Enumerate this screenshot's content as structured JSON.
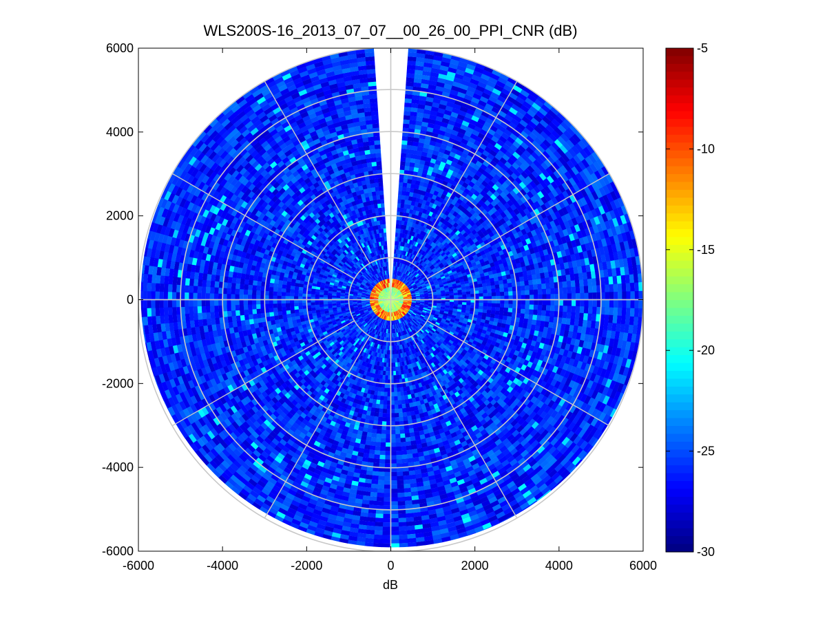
{
  "chart_data": {
    "type": "heatmap",
    "subtype": "polar-ppi",
    "title": "WLS200S-16_2013_07_07__00_26_00_PPI_CNR (dB)",
    "xlabel": "dB",
    "ylabel": "",
    "xlim": [
      -6000,
      6000
    ],
    "ylim": [
      -6000,
      6000
    ],
    "xticks": [
      -6000,
      -4000,
      -2000,
      0,
      2000,
      4000,
      6000
    ],
    "yticks": [
      6000,
      4000,
      2000,
      0,
      -2000,
      -4000,
      -6000
    ],
    "xtick_labels": [
      "-6000",
      "-4000",
      "-2000",
      "0",
      "2000",
      "4000",
      "6000"
    ],
    "ytick_labels": [
      "6000",
      "4000",
      "2000",
      "0",
      "-2000",
      "-4000",
      "-6000"
    ],
    "max_range": 6000,
    "range_rings": [
      1000,
      2000,
      3000,
      4000,
      5000,
      6000
    ],
    "spoke_angles_deg": [
      0,
      30,
      60,
      90,
      120,
      150,
      180,
      210,
      240,
      270,
      300,
      330
    ],
    "missing_sector_deg": [
      -4.5,
      4.5
    ],
    "near_range_high_cnr_radius": 450,
    "typical_cnr_db": -26,
    "colorbar": {
      "min": -30,
      "max": -5,
      "ticks": [
        -5,
        -10,
        -15,
        -20,
        -25,
        -30
      ],
      "tick_labels": [
        "-5",
        "-10",
        "-15",
        "-20",
        "-25",
        "-30"
      ],
      "colormap": "jet"
    },
    "grid_color": "#c8c8c8"
  }
}
